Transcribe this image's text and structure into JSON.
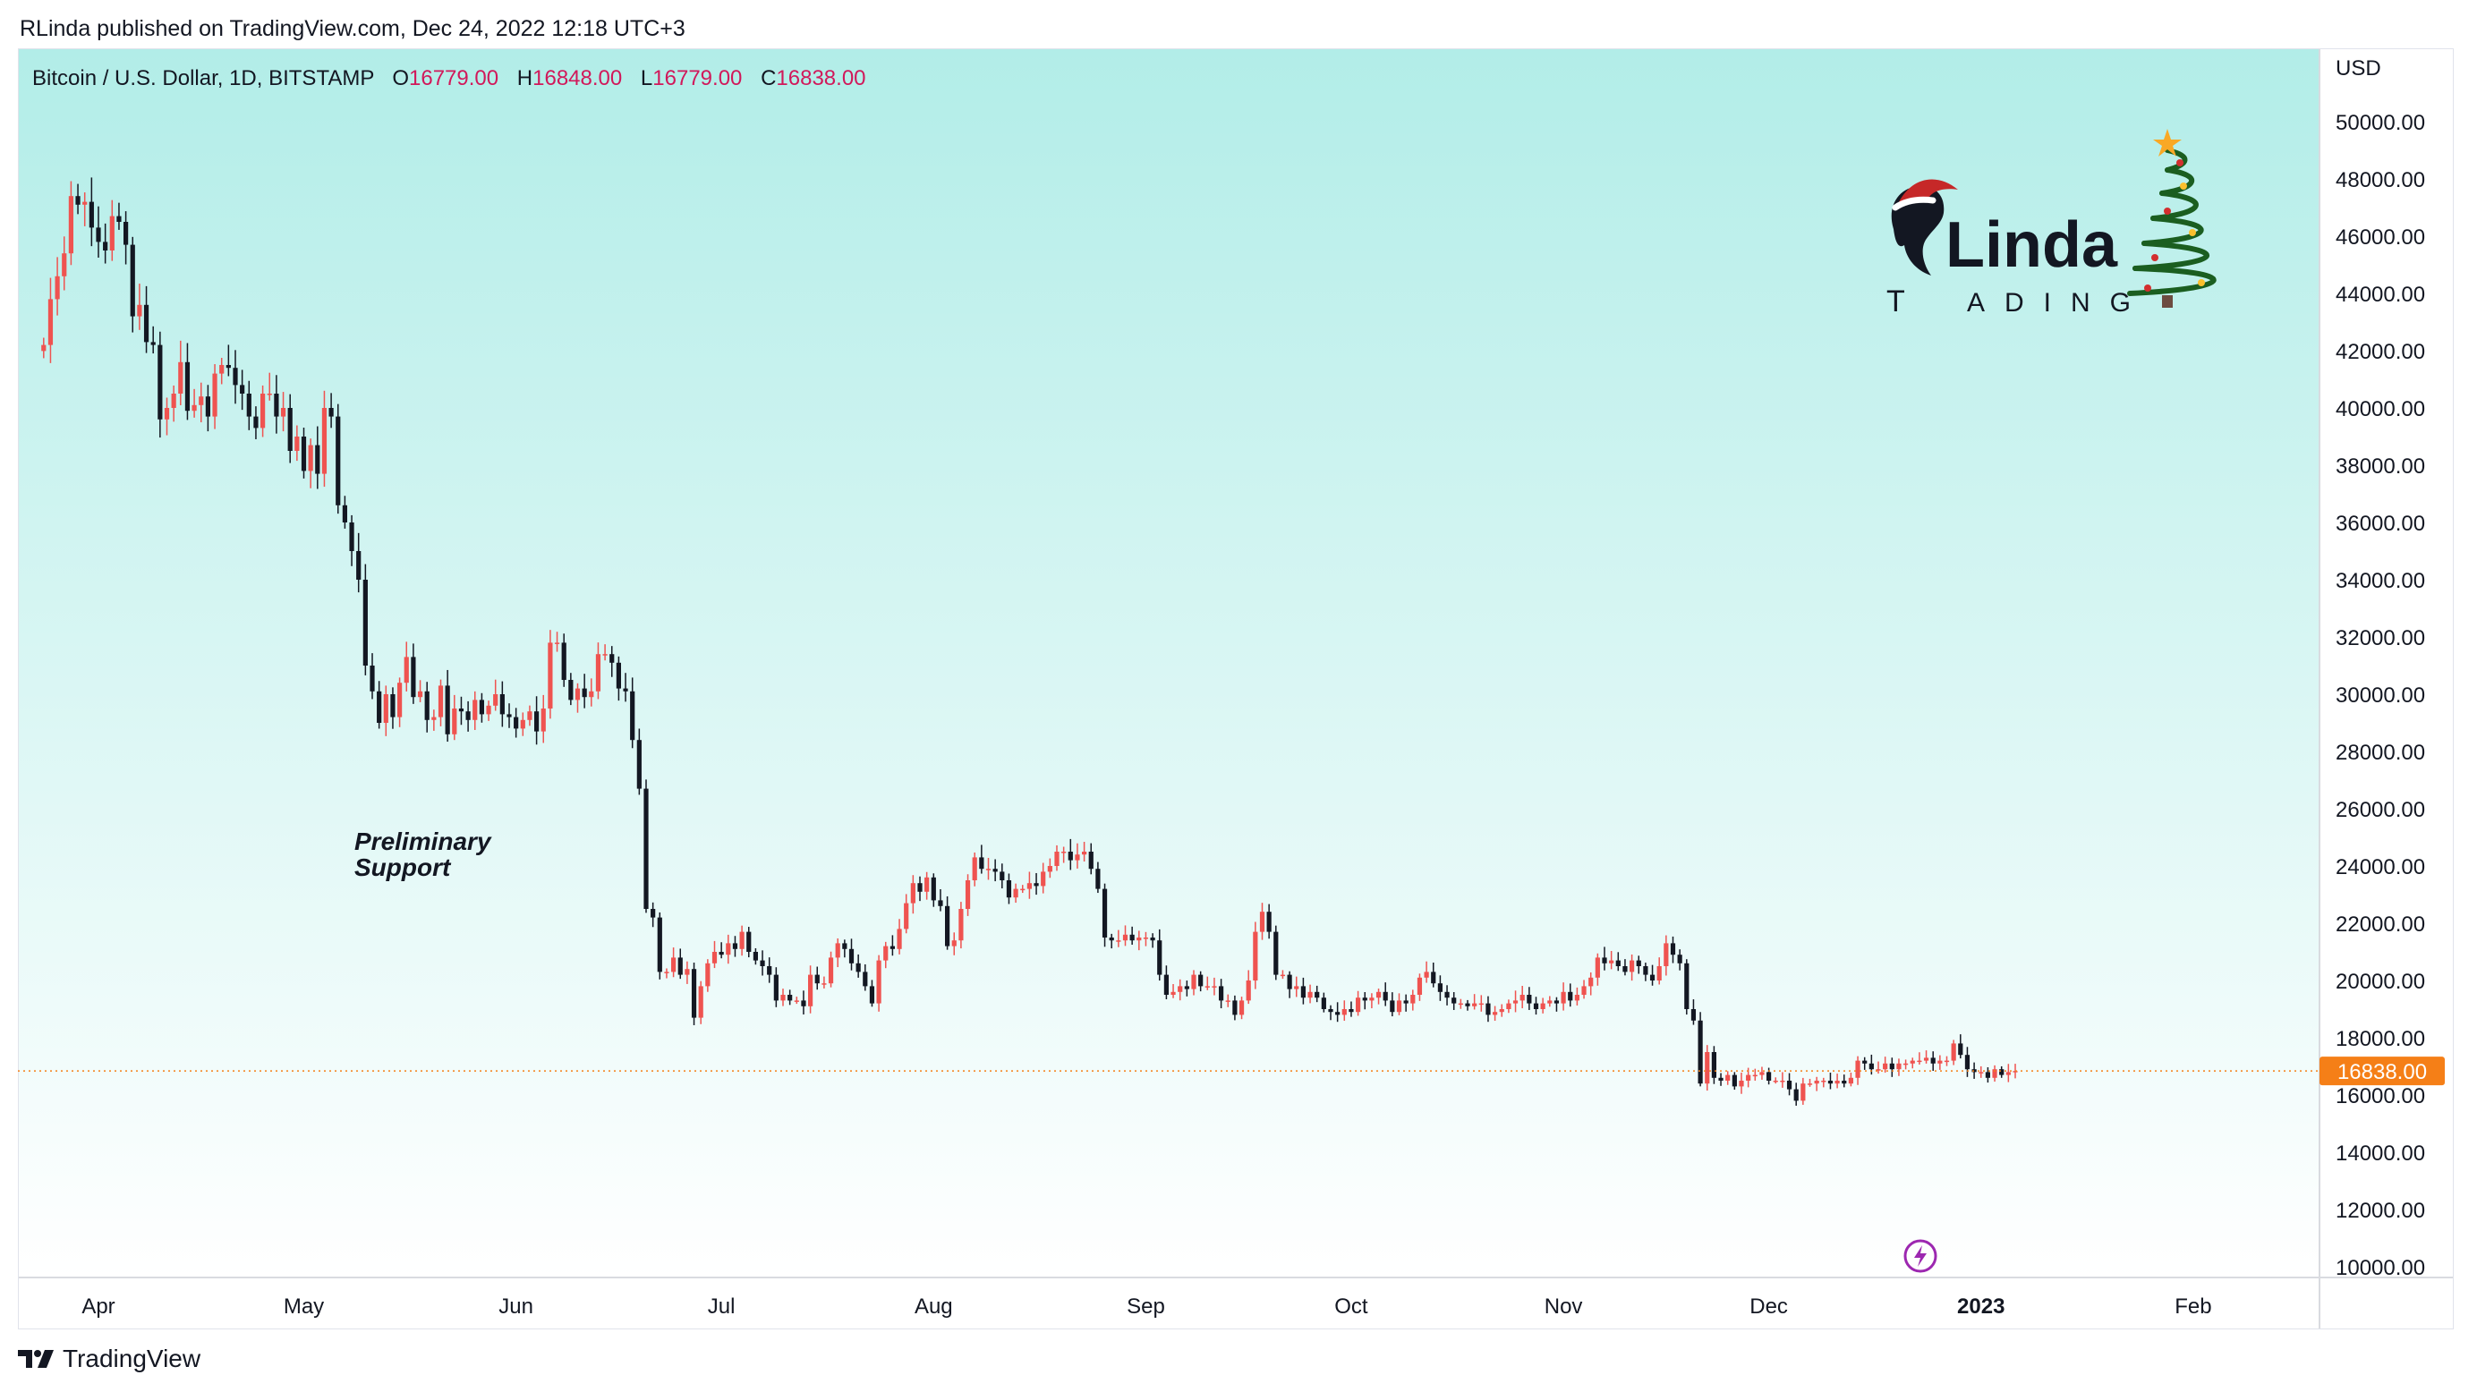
{
  "header": {
    "published": "RLinda published on TradingView.com, Dec 24, 2022 12:18 UTC+3"
  },
  "symbol": {
    "name": "Bitcoin / U.S. Dollar, 1D, BITSTAMP",
    "o_label": "O",
    "o_value": "16779.00",
    "h_label": "H",
    "h_value": "16848.00",
    "l_label": "L",
    "l_value": "16779.00",
    "c_label": "C",
    "c_value": "16838.00"
  },
  "annotation": {
    "line1": "Preliminary",
    "line2": "Support"
  },
  "brand": {
    "name": "Linda",
    "sub": "ADING",
    "t": "T"
  },
  "footer": {
    "logo_text": "TradingView"
  },
  "colors": {
    "up": "#ef5350",
    "down": "#131722",
    "bg_top": "#b2ede8",
    "bg_bottom": "#ffffff",
    "price_tag": "#f57f17",
    "price_line": "#f57f17",
    "bolt": "#9c27b0"
  },
  "chart_data": {
    "type": "candlestick",
    "currency": "USD",
    "y_axis_ticks": [
      "50000.00",
      "48000.00",
      "46000.00",
      "44000.00",
      "42000.00",
      "40000.00",
      "38000.00",
      "36000.00",
      "34000.00",
      "32000.00",
      "30000.00",
      "28000.00",
      "26000.00",
      "24000.00",
      "22000.00",
      "20000.00",
      "18000.00",
      "16000.00",
      "14000.00",
      "12000.00",
      "10000.00"
    ],
    "ylim": [
      9500,
      52000
    ],
    "x_axis_ticks": [
      {
        "label": "Apr",
        "date": "2022-04-01"
      },
      {
        "label": "May",
        "date": "2022-05-01"
      },
      {
        "label": "Jun",
        "date": "2022-06-01"
      },
      {
        "label": "Jul",
        "date": "2022-07-01"
      },
      {
        "label": "Aug",
        "date": "2022-08-01"
      },
      {
        "label": "Sep",
        "date": "2022-09-01"
      },
      {
        "label": "Oct",
        "date": "2022-10-01"
      },
      {
        "label": "Nov",
        "date": "2022-11-01"
      },
      {
        "label": "Dec",
        "date": "2022-12-01"
      },
      {
        "label": "2023",
        "date": "2023-01-01"
      },
      {
        "label": "Feb",
        "date": "2023-02-01"
      }
    ],
    "first_date": "2022-03-24",
    "last_price": 16838,
    "last_price_label": "16838.00",
    "closes": [
      42200,
      43800,
      44600,
      45400,
      47400,
      47100,
      47200,
      46300,
      45800,
      45500,
      46700,
      46500,
      45700,
      43200,
      43600,
      42300,
      42200,
      39600,
      40000,
      40500,
      41600,
      39900,
      40100,
      40400,
      39700,
      41200,
      41500,
      41400,
      40800,
      40500,
      39700,
      39300,
      40500,
      40500,
      39700,
      40000,
      38500,
      39000,
      37800,
      38700,
      37700,
      40000,
      39700,
      36600,
      36000,
      35000,
      34000,
      31000,
      30100,
      29000,
      30000,
      29200,
      30400,
      31300,
      29900,
      30100,
      29100,
      29200,
      30300,
      28600,
      29500,
      29400,
      29100,
      29800,
      29300,
      29600,
      30000,
      29300,
      29200,
      28800,
      29100,
      29400,
      28700,
      29500,
      31800,
      31800,
      30500,
      29800,
      30200,
      29900,
      30100,
      31400,
      31400,
      31100,
      30200,
      30100,
      28400,
      26700,
      22500,
      22200,
      20300,
      20300,
      20800,
      20200,
      20400,
      18700,
      19800,
      20600,
      21000,
      20900,
      21300,
      21100,
      21700,
      21000,
      20700,
      20500,
      20200,
      19300,
      19500,
      19300,
      19300,
      19100,
      20200,
      19900,
      19900,
      20800,
      21300,
      21100,
      20600,
      20300,
      19800,
      19200,
      20700,
      21200,
      21100,
      21800,
      22700,
      23400,
      23100,
      23600,
      22800,
      22600,
      21200,
      21400,
      22500,
      23500,
      24300,
      23900,
      23900,
      23800,
      23500,
      22900,
      23200,
      23200,
      23400,
      23300,
      23800,
      24000,
      24500,
      24500,
      24200,
      24400,
      24500,
      23900,
      23200,
      21500,
      21400,
      21400,
      21600,
      21400,
      21500,
      21500,
      21400,
      20200,
      19500,
      19600,
      19800,
      19700,
      20200,
      19800,
      19800,
      19800,
      19300,
      19300,
      18800,
      19300,
      20000,
      21700,
      22400,
      21700,
      20200,
      20200,
      19700,
      19800,
      19400,
      19600,
      19400,
      19000,
      18900,
      18800,
      19000,
      18900,
      19400,
      19300,
      19400,
      19600,
      19300,
      18900,
      19300,
      19200,
      19500,
      20100,
      20300,
      19900,
      19600,
      19400,
      19200,
      19200,
      19100,
      19200,
      19200,
      18800,
      18900,
      19000,
      19200,
      19300,
      19500,
      19200,
      19000,
      19200,
      19300,
      19200,
      19600,
      19300,
      19500,
      19800,
      20100,
      20800,
      20600,
      20700,
      20500,
      20300,
      20700,
      20500,
      20200,
      20000,
      20500,
      21300,
      20900,
      20600,
      19000,
      18600,
      16400,
      17500,
      16600,
      16500,
      16700,
      16300,
      16500,
      16700,
      16700,
      16800,
      16500,
      16500,
      16500,
      16200,
      15800,
      16400,
      16400,
      16500,
      16500,
      16400,
      16500,
      16400,
      16600,
      17200,
      17100,
      16900,
      16900,
      17100,
      16900,
      17100,
      17100,
      17200,
      17200,
      17300,
      17100,
      17200,
      17200,
      17800,
      17400,
      16900,
      16800,
      16800,
      16600,
      16900,
      16700,
      16800,
      16838
    ]
  }
}
